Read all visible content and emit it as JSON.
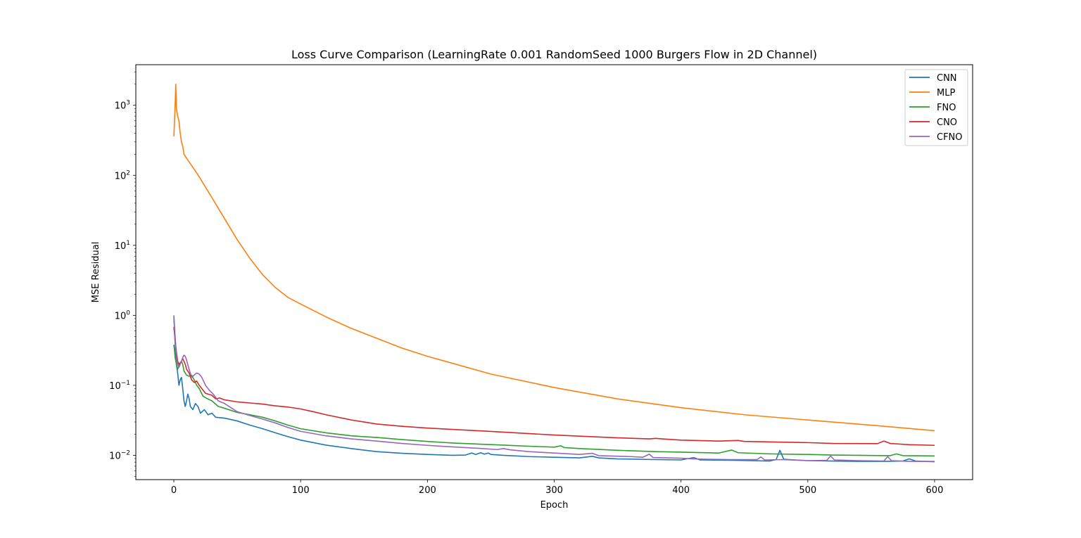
{
  "chart_data": {
    "type": "line",
    "title": "Loss Curve Comparison (LearningRate 0.001 RandomSeed 1000 Burgers Flow in 2D Channel)",
    "xlabel": "Epoch",
    "ylabel": "MSE Residual",
    "yscale": "log",
    "xlim": [
      -30,
      630
    ],
    "ylim": [
      0.0045,
      3800
    ],
    "xticks": [
      0,
      100,
      200,
      300,
      400,
      500,
      600
    ],
    "yticks": [
      {
        "value": 0.01,
        "base": "10",
        "exp": "−2"
      },
      {
        "value": 0.1,
        "base": "10",
        "exp": "−1"
      },
      {
        "value": 1,
        "base": "10",
        "exp": "0"
      },
      {
        "value": 10,
        "base": "10",
        "exp": "1"
      },
      {
        "value": 100,
        "base": "10",
        "exp": "2"
      },
      {
        "value": 1000,
        "base": "10",
        "exp": "3"
      }
    ],
    "grid": false,
    "legend_position": "top-right",
    "series": [
      {
        "name": "CNN",
        "color": "#1f77b4",
        "points": [
          [
            0,
            0.95
          ],
          [
            1,
            0.4
          ],
          [
            2,
            0.2
          ],
          [
            3,
            0.15
          ],
          [
            4,
            0.1
          ],
          [
            5,
            0.12
          ],
          [
            6,
            0.13
          ],
          [
            7,
            0.09
          ],
          [
            8,
            0.06
          ],
          [
            9,
            0.05
          ],
          [
            10,
            0.06
          ],
          [
            11,
            0.075
          ],
          [
            12,
            0.065
          ],
          [
            13,
            0.05
          ],
          [
            15,
            0.045
          ],
          [
            17,
            0.055
          ],
          [
            19,
            0.05
          ],
          [
            21,
            0.04
          ],
          [
            24,
            0.045
          ],
          [
            27,
            0.038
          ],
          [
            30,
            0.04
          ],
          [
            33,
            0.035
          ],
          [
            40,
            0.034
          ],
          [
            50,
            0.031
          ],
          [
            60,
            0.027
          ],
          [
            70,
            0.024
          ],
          [
            80,
            0.021
          ],
          [
            90,
            0.0185
          ],
          [
            100,
            0.0165
          ],
          [
            120,
            0.014
          ],
          [
            140,
            0.0125
          ],
          [
            160,
            0.0113
          ],
          [
            180,
            0.0107
          ],
          [
            200,
            0.0103
          ],
          [
            220,
            0.01
          ],
          [
            230,
            0.0101
          ],
          [
            235,
            0.0108
          ],
          [
            238,
            0.0103
          ],
          [
            242,
            0.0109
          ],
          [
            245,
            0.0104
          ],
          [
            248,
            0.0108
          ],
          [
            250,
            0.0103
          ],
          [
            260,
            0.01
          ],
          [
            280,
            0.0096
          ],
          [
            300,
            0.0094
          ],
          [
            320,
            0.0092
          ],
          [
            330,
            0.0097
          ],
          [
            335,
            0.0092
          ],
          [
            350,
            0.0089
          ],
          [
            380,
            0.0087
          ],
          [
            400,
            0.0086
          ],
          [
            410,
            0.0093
          ],
          [
            415,
            0.0086
          ],
          [
            440,
            0.0085
          ],
          [
            470,
            0.0083
          ],
          [
            475,
            0.0087
          ],
          [
            478,
            0.0118
          ],
          [
            481,
            0.0088
          ],
          [
            490,
            0.0086
          ],
          [
            500,
            0.0084
          ],
          [
            520,
            0.0083
          ],
          [
            540,
            0.0082
          ],
          [
            560,
            0.0082
          ],
          [
            575,
            0.0083
          ],
          [
            580,
            0.0089
          ],
          [
            585,
            0.0083
          ],
          [
            600,
            0.0081
          ]
        ]
      },
      {
        "name": "MLP",
        "color": "#ff7f0e",
        "points": [
          [
            0,
            360
          ],
          [
            1,
            1000
          ],
          [
            1.5,
            2000
          ],
          [
            2,
            900
          ],
          [
            3,
            700
          ],
          [
            4,
            600
          ],
          [
            5,
            400
          ],
          [
            6,
            300
          ],
          [
            7,
            260
          ],
          [
            8,
            200
          ],
          [
            10,
            175
          ],
          [
            15,
            130
          ],
          [
            20,
            95
          ],
          [
            30,
            48
          ],
          [
            40,
            24
          ],
          [
            50,
            12
          ],
          [
            60,
            6.5
          ],
          [
            70,
            3.8
          ],
          [
            80,
            2.5
          ],
          [
            90,
            1.8
          ],
          [
            100,
            1.45
          ],
          [
            120,
            0.95
          ],
          [
            140,
            0.65
          ],
          [
            160,
            0.47
          ],
          [
            180,
            0.34
          ],
          [
            200,
            0.26
          ],
          [
            250,
            0.145
          ],
          [
            300,
            0.093
          ],
          [
            350,
            0.064
          ],
          [
            400,
            0.048
          ],
          [
            450,
            0.038
          ],
          [
            500,
            0.032
          ],
          [
            550,
            0.027
          ],
          [
            600,
            0.0225
          ]
        ]
      },
      {
        "name": "FNO",
        "color": "#2ca02c",
        "points": [
          [
            0,
            0.38
          ],
          [
            1,
            0.25
          ],
          [
            2,
            0.2
          ],
          [
            3,
            0.17
          ],
          [
            4,
            0.19
          ],
          [
            5,
            0.21
          ],
          [
            6,
            0.22
          ],
          [
            7,
            0.2
          ],
          [
            8,
            0.16
          ],
          [
            10,
            0.14
          ],
          [
            12,
            0.135
          ],
          [
            14,
            0.14
          ],
          [
            16,
            0.12
          ],
          [
            18,
            0.1
          ],
          [
            20,
            0.09
          ],
          [
            23,
            0.07
          ],
          [
            26,
            0.065
          ],
          [
            30,
            0.06
          ],
          [
            35,
            0.05
          ],
          [
            40,
            0.047
          ],
          [
            50,
            0.041
          ],
          [
            60,
            0.038
          ],
          [
            70,
            0.035
          ],
          [
            80,
            0.031
          ],
          [
            90,
            0.027
          ],
          [
            100,
            0.024
          ],
          [
            120,
            0.021
          ],
          [
            140,
            0.019
          ],
          [
            160,
            0.018
          ],
          [
            180,
            0.0168
          ],
          [
            200,
            0.0158
          ],
          [
            220,
            0.015
          ],
          [
            240,
            0.0145
          ],
          [
            260,
            0.014
          ],
          [
            280,
            0.0135
          ],
          [
            300,
            0.0131
          ],
          [
            305,
            0.0137
          ],
          [
            308,
            0.0129
          ],
          [
            320,
            0.0125
          ],
          [
            350,
            0.0118
          ],
          [
            380,
            0.0113
          ],
          [
            400,
            0.0111
          ],
          [
            430,
            0.0108
          ],
          [
            440,
            0.0119
          ],
          [
            445,
            0.0109
          ],
          [
            470,
            0.0105
          ],
          [
            500,
            0.0103
          ],
          [
            520,
            0.0101
          ],
          [
            540,
            0.01
          ],
          [
            565,
            0.0099
          ],
          [
            570,
            0.0105
          ],
          [
            575,
            0.0099
          ],
          [
            600,
            0.0098
          ]
        ]
      },
      {
        "name": "CNO",
        "color": "#d62728",
        "points": [
          [
            0,
            0.68
          ],
          [
            1,
            0.45
          ],
          [
            2,
            0.3
          ],
          [
            3,
            0.22
          ],
          [
            4,
            0.2
          ],
          [
            5,
            0.21
          ],
          [
            6,
            0.22
          ],
          [
            7,
            0.24
          ],
          [
            8,
            0.22
          ],
          [
            9,
            0.2
          ],
          [
            10,
            0.17
          ],
          [
            12,
            0.15
          ],
          [
            14,
            0.12
          ],
          [
            16,
            0.11
          ],
          [
            18,
            0.115
          ],
          [
            20,
            0.1
          ],
          [
            22,
            0.09
          ],
          [
            25,
            0.077
          ],
          [
            30,
            0.072
          ],
          [
            33,
            0.064
          ],
          [
            36,
            0.066
          ],
          [
            40,
            0.062
          ],
          [
            45,
            0.06
          ],
          [
            50,
            0.058
          ],
          [
            60,
            0.056
          ],
          [
            70,
            0.054
          ],
          [
            80,
            0.051
          ],
          [
            90,
            0.049
          ],
          [
            100,
            0.046
          ],
          [
            110,
            0.042
          ],
          [
            120,
            0.038
          ],
          [
            140,
            0.032
          ],
          [
            160,
            0.028
          ],
          [
            180,
            0.026
          ],
          [
            200,
            0.0245
          ],
          [
            250,
            0.022
          ],
          [
            300,
            0.0195
          ],
          [
            350,
            0.0178
          ],
          [
            375,
            0.0172
          ],
          [
            380,
            0.0175
          ],
          [
            385,
            0.0172
          ],
          [
            400,
            0.0165
          ],
          [
            430,
            0.016
          ],
          [
            445,
            0.0163
          ],
          [
            450,
            0.0158
          ],
          [
            500,
            0.0152
          ],
          [
            520,
            0.0148
          ],
          [
            555,
            0.0147
          ],
          [
            560,
            0.016
          ],
          [
            565,
            0.0148
          ],
          [
            580,
            0.0142
          ],
          [
            600,
            0.0139
          ]
        ]
      },
      {
        "name": "CFNO",
        "color": "#9467bd",
        "points": [
          [
            0,
            1.0
          ],
          [
            1,
            0.5
          ],
          [
            2,
            0.25
          ],
          [
            3,
            0.2
          ],
          [
            4,
            0.18
          ],
          [
            5,
            0.2
          ],
          [
            6,
            0.22
          ],
          [
            7,
            0.25
          ],
          [
            8,
            0.27
          ],
          [
            9,
            0.26
          ],
          [
            10,
            0.23
          ],
          [
            12,
            0.17
          ],
          [
            14,
            0.13
          ],
          [
            16,
            0.14
          ],
          [
            18,
            0.15
          ],
          [
            20,
            0.145
          ],
          [
            22,
            0.13
          ],
          [
            25,
            0.1
          ],
          [
            28,
            0.085
          ],
          [
            31,
            0.075
          ],
          [
            35,
            0.06
          ],
          [
            40,
            0.055
          ],
          [
            45,
            0.048
          ],
          [
            50,
            0.042
          ],
          [
            60,
            0.037
          ],
          [
            70,
            0.033
          ],
          [
            80,
            0.029
          ],
          [
            90,
            0.025
          ],
          [
            100,
            0.022
          ],
          [
            120,
            0.019
          ],
          [
            140,
            0.0172
          ],
          [
            160,
            0.016
          ],
          [
            180,
            0.0148
          ],
          [
            200,
            0.0139
          ],
          [
            220,
            0.0132
          ],
          [
            240,
            0.0126
          ],
          [
            255,
            0.0121
          ],
          [
            260,
            0.0125
          ],
          [
            265,
            0.012
          ],
          [
            280,
            0.0113
          ],
          [
            300,
            0.0108
          ],
          [
            320,
            0.0103
          ],
          [
            330,
            0.0107
          ],
          [
            335,
            0.0099
          ],
          [
            360,
            0.0096
          ],
          [
            370,
            0.0094
          ],
          [
            375,
            0.0104
          ],
          [
            378,
            0.0093
          ],
          [
            400,
            0.0091
          ],
          [
            410,
            0.0089
          ],
          [
            420,
            0.0088
          ],
          [
            440,
            0.0087
          ],
          [
            460,
            0.0087
          ],
          [
            463,
            0.0095
          ],
          [
            466,
            0.0086
          ],
          [
            480,
            0.0087
          ],
          [
            500,
            0.0084
          ],
          [
            515,
            0.0085
          ],
          [
            518,
            0.0098
          ],
          [
            521,
            0.0086
          ],
          [
            540,
            0.0084
          ],
          [
            560,
            0.0083
          ],
          [
            563,
            0.0096
          ],
          [
            566,
            0.0084
          ],
          [
            580,
            0.0082
          ],
          [
            600,
            0.0082
          ]
        ]
      }
    ]
  }
}
